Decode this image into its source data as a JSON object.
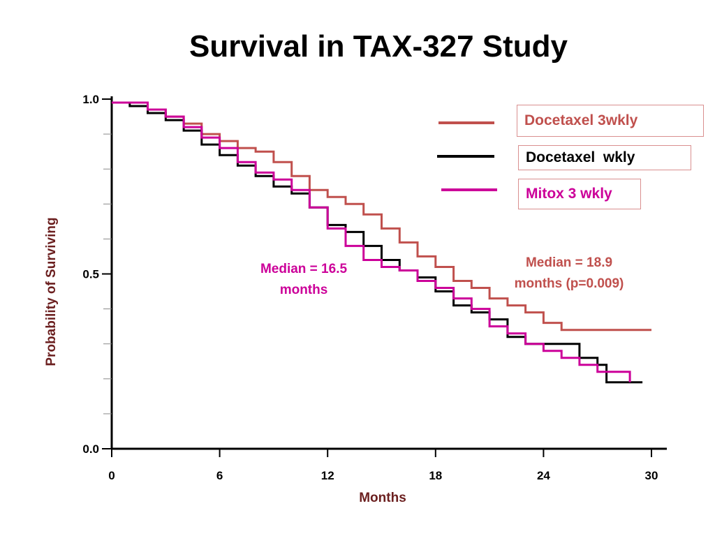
{
  "colors": {
    "docetaxel_3wkly": "#c0504d",
    "docetaxel_wkly": "#000000",
    "mitox": "#cc0099",
    "axis_label": "#6b1f1f"
  },
  "chart_data": {
    "type": "line",
    "title": "Survival in TAX-327 Study",
    "xlabel": "Months",
    "ylabel": "Probability of Surviving",
    "xlim": [
      0,
      30
    ],
    "ylim": [
      0.0,
      1.0
    ],
    "x_ticks": [
      "0",
      "6",
      "12",
      "18",
      "24",
      "30"
    ],
    "y_ticks": [
      "0.0",
      "0.5",
      "1.0"
    ],
    "y_minor_ticks": [
      0.1,
      0.2,
      0.3,
      0.4,
      0.6,
      0.7,
      0.8,
      0.9
    ],
    "grid": false,
    "legend_position": "top-right",
    "series": [
      {
        "name": "Docetaxel 3wkly",
        "color": "#c0504d",
        "points": [
          [
            0,
            0.99
          ],
          [
            1,
            0.99
          ],
          [
            2,
            0.97
          ],
          [
            3,
            0.95
          ],
          [
            4,
            0.93
          ],
          [
            5,
            0.9
          ],
          [
            6,
            0.88
          ],
          [
            7,
            0.86
          ],
          [
            8,
            0.85
          ],
          [
            9,
            0.82
          ],
          [
            10,
            0.78
          ],
          [
            11,
            0.74
          ],
          [
            12,
            0.72
          ],
          [
            13,
            0.7
          ],
          [
            14,
            0.67
          ],
          [
            15,
            0.63
          ],
          [
            16,
            0.59
          ],
          [
            17,
            0.55
          ],
          [
            18,
            0.52
          ],
          [
            19,
            0.48
          ],
          [
            20,
            0.46
          ],
          [
            21,
            0.43
          ],
          [
            22,
            0.41
          ],
          [
            23,
            0.39
          ],
          [
            24,
            0.36
          ],
          [
            25,
            0.34
          ],
          [
            27,
            0.34
          ],
          [
            30,
            0.34
          ]
        ]
      },
      {
        "name": "Docetaxel  wkly",
        "color": "#000000",
        "points": [
          [
            0,
            0.99
          ],
          [
            1,
            0.98
          ],
          [
            2,
            0.96
          ],
          [
            3,
            0.94
          ],
          [
            4,
            0.91
          ],
          [
            5,
            0.87
          ],
          [
            6,
            0.84
          ],
          [
            7,
            0.81
          ],
          [
            8,
            0.78
          ],
          [
            9,
            0.75
          ],
          [
            10,
            0.73
          ],
          [
            11,
            0.69
          ],
          [
            12,
            0.64
          ],
          [
            13,
            0.62
          ],
          [
            14,
            0.58
          ],
          [
            15,
            0.54
          ],
          [
            16,
            0.51
          ],
          [
            17,
            0.49
          ],
          [
            18,
            0.45
          ],
          [
            19,
            0.41
          ],
          [
            20,
            0.39
          ],
          [
            21,
            0.37
          ],
          [
            22,
            0.32
          ],
          [
            23,
            0.3
          ],
          [
            24,
            0.3
          ],
          [
            25,
            0.3
          ],
          [
            26,
            0.26
          ],
          [
            27,
            0.24
          ],
          [
            27.5,
            0.19
          ],
          [
            29.5,
            0.19
          ]
        ]
      },
      {
        "name": "Mitox 3 wkly",
        "color": "#cc0099",
        "points": [
          [
            0,
            0.99
          ],
          [
            1,
            0.99
          ],
          [
            2,
            0.97
          ],
          [
            3,
            0.95
          ],
          [
            4,
            0.92
          ],
          [
            5,
            0.89
          ],
          [
            6,
            0.86
          ],
          [
            7,
            0.82
          ],
          [
            8,
            0.79
          ],
          [
            9,
            0.77
          ],
          [
            10,
            0.74
          ],
          [
            11,
            0.69
          ],
          [
            12,
            0.63
          ],
          [
            13,
            0.58
          ],
          [
            14,
            0.54
          ],
          [
            15,
            0.52
          ],
          [
            16,
            0.51
          ],
          [
            17,
            0.48
          ],
          [
            18,
            0.46
          ],
          [
            19,
            0.43
          ],
          [
            20,
            0.4
          ],
          [
            21,
            0.35
          ],
          [
            22,
            0.33
          ],
          [
            23,
            0.3
          ],
          [
            24,
            0.28
          ],
          [
            25,
            0.26
          ],
          [
            26,
            0.24
          ],
          [
            27,
            0.22
          ],
          [
            28,
            0.22
          ],
          [
            28.8,
            0.22
          ],
          [
            28.8,
            0.19
          ]
        ]
      }
    ],
    "annotations": [
      {
        "text_line1": "Median = 16.5",
        "text_line2": "months",
        "color": "#cc0099"
      },
      {
        "text_line1": "Median = 18.9",
        "text_line2": "months (p=0.009)",
        "color": "#c0504d"
      }
    ]
  }
}
